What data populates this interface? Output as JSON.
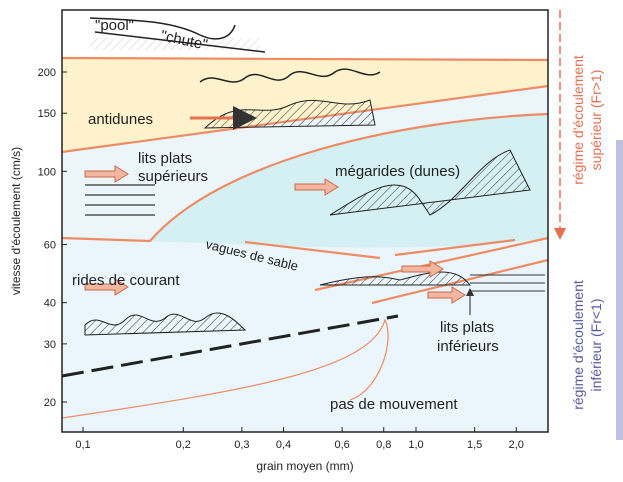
{
  "diagram": {
    "x_axis": {
      "label": "grain moyen (mm)",
      "scale": "log",
      "ticks": [
        {
          "value": 0.1,
          "label": "0,1"
        },
        {
          "value": 0.2,
          "label": "0,2"
        },
        {
          "value": 0.3,
          "label": "0,3"
        },
        {
          "value": 0.4,
          "label": "0,4"
        },
        {
          "value": 0.6,
          "label": "0,6"
        },
        {
          "value": 0.8,
          "label": "0,8"
        },
        {
          "value": 1.0,
          "label": "1,0"
        },
        {
          "value": 1.5,
          "label": "1,5"
        },
        {
          "value": 2.0,
          "label": "2,0"
        }
      ]
    },
    "y_axis": {
      "label": "vitesse d'écoulement (cm/s)",
      "scale": "log",
      "ticks": [
        20,
        30,
        40,
        60,
        100,
        150,
        200
      ]
    },
    "regions": {
      "pool": "\"pool\"",
      "chute": "\"chute\"",
      "antidunes": "antidunes",
      "upper_plane": [
        "lits plats",
        "supérieurs"
      ],
      "dunes": "mégarides (dunes)",
      "sand_waves": "vagues de sable",
      "ripples": "rides de courant",
      "lower_plane": [
        "lits plats",
        "inférieurs"
      ],
      "no_movement": "pas de mouvement"
    },
    "side_labels": {
      "upper": [
        "régime d'écoulement",
        "supérieur (Fr>1)"
      ],
      "lower": [
        "régime d'écoulement",
        "inférieur (Fr<1)"
      ]
    }
  }
}
